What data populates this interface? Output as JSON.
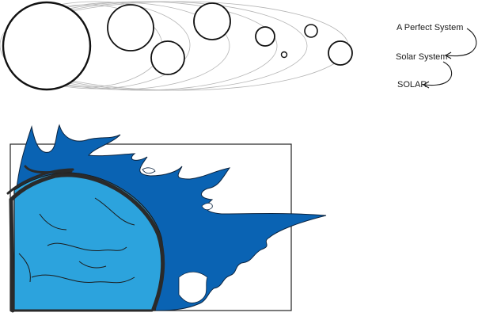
{
  "labels": {
    "line1": "A Perfect System",
    "line2": "Solar System",
    "line3": "SOLAR"
  },
  "colors": {
    "ink": "#1a1a1a",
    "orbit": "#b5b5b5",
    "flame_dark": "#0a63b3",
    "flame_light": "#2ca3dd",
    "frame": "#222222"
  },
  "icons": {
    "sun": "sun-circle",
    "planets": "planet-circles",
    "arrows": "curved-arrow",
    "logo": "solar-flame-logo"
  }
}
